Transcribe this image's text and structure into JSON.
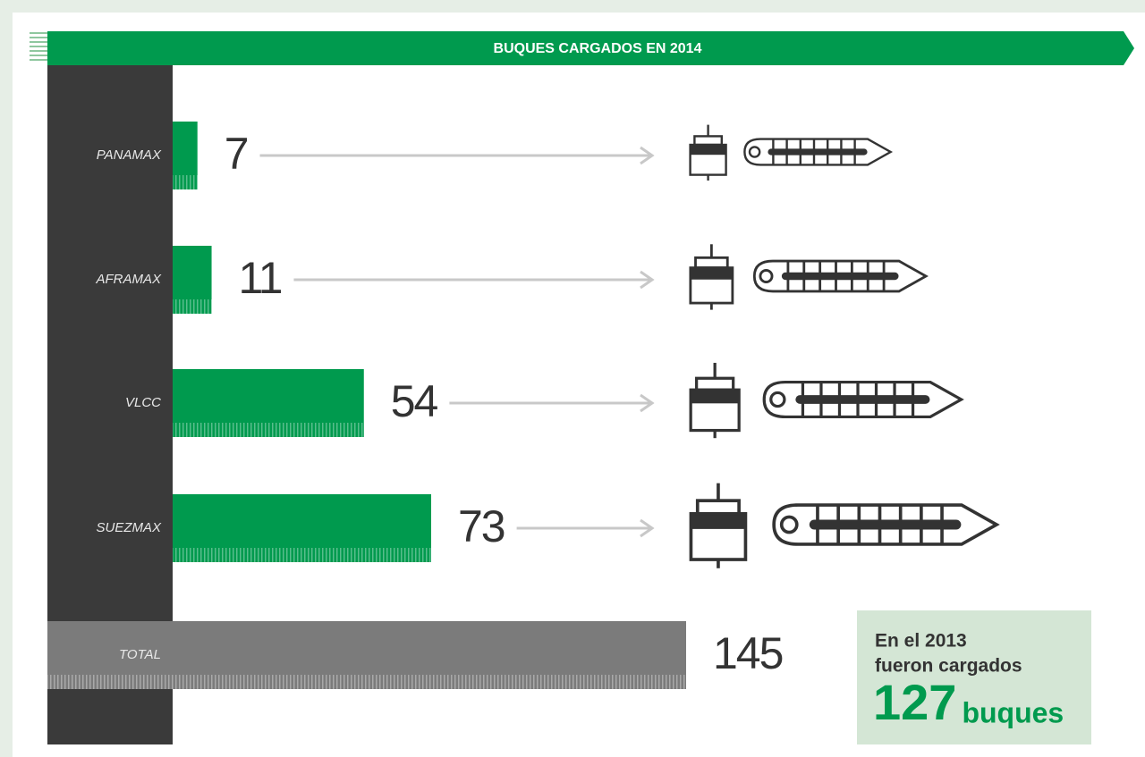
{
  "chart_data": {
    "type": "bar",
    "orientation": "horizontal",
    "title": "BUQUES CARGADOS EN 2014",
    "categories": [
      "PANAMAX",
      "AFRAMAX",
      "VLCC",
      "SUEZMAX",
      "TOTAL"
    ],
    "values": [
      7,
      11,
      54,
      73,
      145
    ],
    "color": "#009a4e",
    "total_color": "#7b7b7b",
    "annotation": {
      "lines": [
        "En el 2013",
        "fueron cargados"
      ],
      "value": 127,
      "unit": "buques"
    }
  }
}
